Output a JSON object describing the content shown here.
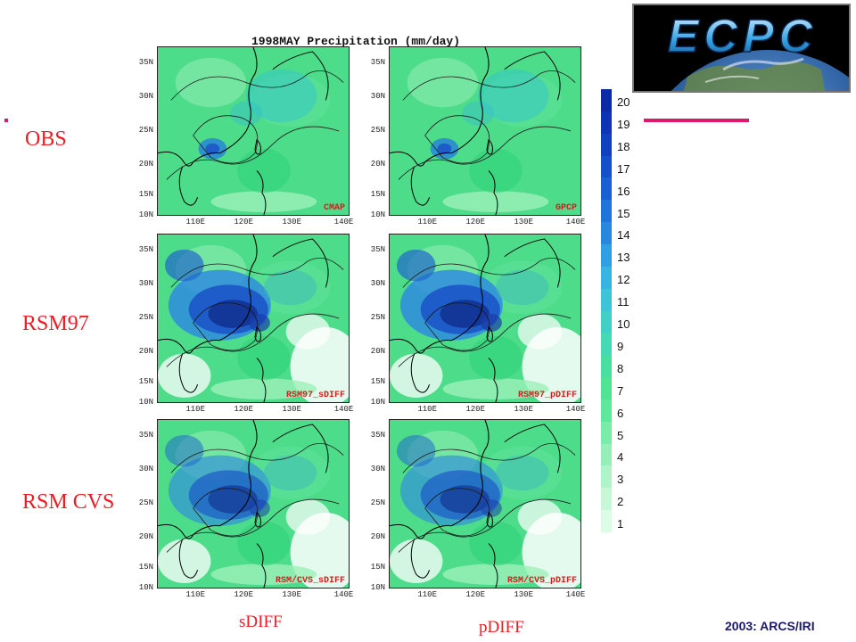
{
  "logo": {
    "text": "ECPC"
  },
  "figure": {
    "title": "1998MAY Precipitation (mm/day)",
    "lat_ticks": [
      "35N",
      "30N",
      "25N",
      "20N",
      "15N",
      "10N"
    ],
    "lon_ticks": [
      "110E",
      "120E",
      "130E",
      "140E"
    ]
  },
  "rows": [
    {
      "label": "OBS",
      "panels": [
        "CMAP",
        "GPCP"
      ]
    },
    {
      "label": "RSM97",
      "panels": [
        "RSM97_sDIFF",
        "RSM97_pDIFF"
      ]
    },
    {
      "label": "RSM CVS",
      "panels": [
        "RSM/CVS_sDIFF",
        "RSM/CVS_pDIFF"
      ]
    }
  ],
  "columns": [
    "sDIFF",
    "pDIFF"
  ],
  "colorbar": {
    "levels": [
      "20",
      "19",
      "18",
      "17",
      "16",
      "15",
      "14",
      "13",
      "12",
      "11",
      "10",
      "9",
      "8",
      "7",
      "6",
      "5",
      "4",
      "3",
      "2",
      "1"
    ]
  },
  "credit": "2003: ARCS/IRI",
  "colors": {
    "accent": "#e0186c",
    "label_red": "#ee1c24"
  }
}
